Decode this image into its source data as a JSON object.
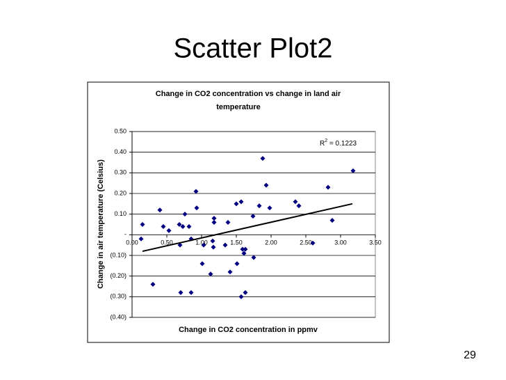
{
  "slide": {
    "title": "Scatter Plot2",
    "number": "29"
  },
  "chart_data": {
    "type": "scatter",
    "title_lines": [
      "Change in CO2 concentration vs change in land air",
      "temperature"
    ],
    "x_label": "Change in CO2 concentration in ppmv",
    "y_label": "Change in air temperature (Celsius)",
    "color": "#000080",
    "x": [
      0.13,
      0.15,
      0.3,
      0.4,
      0.45,
      0.53,
      0.68,
      0.69,
      0.7,
      0.73,
      0.76,
      0.82,
      0.85,
      0.85,
      0.92,
      0.93,
      1.01,
      1.03,
      1.13,
      1.16,
      1.17,
      1.18,
      1.18,
      1.34,
      1.38,
      1.41,
      1.5,
      1.51,
      1.57,
      1.57,
      1.59,
      1.61,
      1.63,
      1.63,
      1.74,
      1.75,
      1.83,
      1.88,
      1.93,
      1.98,
      2.35,
      2.4,
      2.6,
      2.82,
      2.88,
      3.18
    ],
    "values": [
      -0.02,
      0.05,
      -0.24,
      0.12,
      0.04,
      0.02,
      0.05,
      -0.05,
      -0.28,
      0.04,
      0.1,
      0.04,
      -0.02,
      -0.28,
      0.21,
      0.13,
      -0.14,
      -0.05,
      -0.19,
      -0.03,
      -0.06,
      0.08,
      0.06,
      -0.05,
      0.06,
      -0.18,
      0.15,
      -0.14,
      0.16,
      -0.3,
      -0.07,
      -0.09,
      -0.28,
      -0.07,
      0.09,
      -0.11,
      0.14,
      0.37,
      0.24,
      0.13,
      0.16,
      0.14,
      -0.04,
      0.23,
      0.07,
      0.31
    ],
    "trendline": {
      "x": [
        0.15,
        3.17
      ],
      "y": [
        -0.08,
        0.15
      ],
      "color": "#000000"
    },
    "annotation_parts": [
      "R",
      "2",
      " = 0.1223"
    ],
    "xlim": [
      0,
      3.5
    ],
    "ylim": [
      -0.4,
      0.5
    ],
    "xticks": [
      {
        "value": 0,
        "label": "0.00"
      },
      {
        "value": 0.5,
        "label": "0.50"
      },
      {
        "value": 1,
        "label": "1.00"
      },
      {
        "value": 1.5,
        "label": "1.50"
      },
      {
        "value": 2,
        "label": "2.00"
      },
      {
        "value": 2.5,
        "label": "2.50"
      },
      {
        "value": 3,
        "label": "3.00"
      },
      {
        "value": 3.5,
        "label": "3.50"
      }
    ],
    "yticks": [
      {
        "value": 0.5,
        "label": "0.50"
      },
      {
        "value": 0.4,
        "label": "0.40"
      },
      {
        "value": 0.3,
        "label": "0.30"
      },
      {
        "value": 0.2,
        "label": "0.20"
      },
      {
        "value": 0.1,
        "label": "0.10"
      },
      {
        "value": 0,
        "label": "-"
      },
      {
        "value": -0.1,
        "label": "(0.10)"
      },
      {
        "value": -0.2,
        "label": "(0.20)"
      },
      {
        "value": -0.3,
        "label": "(0.30)"
      },
      {
        "value": -0.4,
        "label": "(0.40)"
      }
    ],
    "grid": true
  }
}
